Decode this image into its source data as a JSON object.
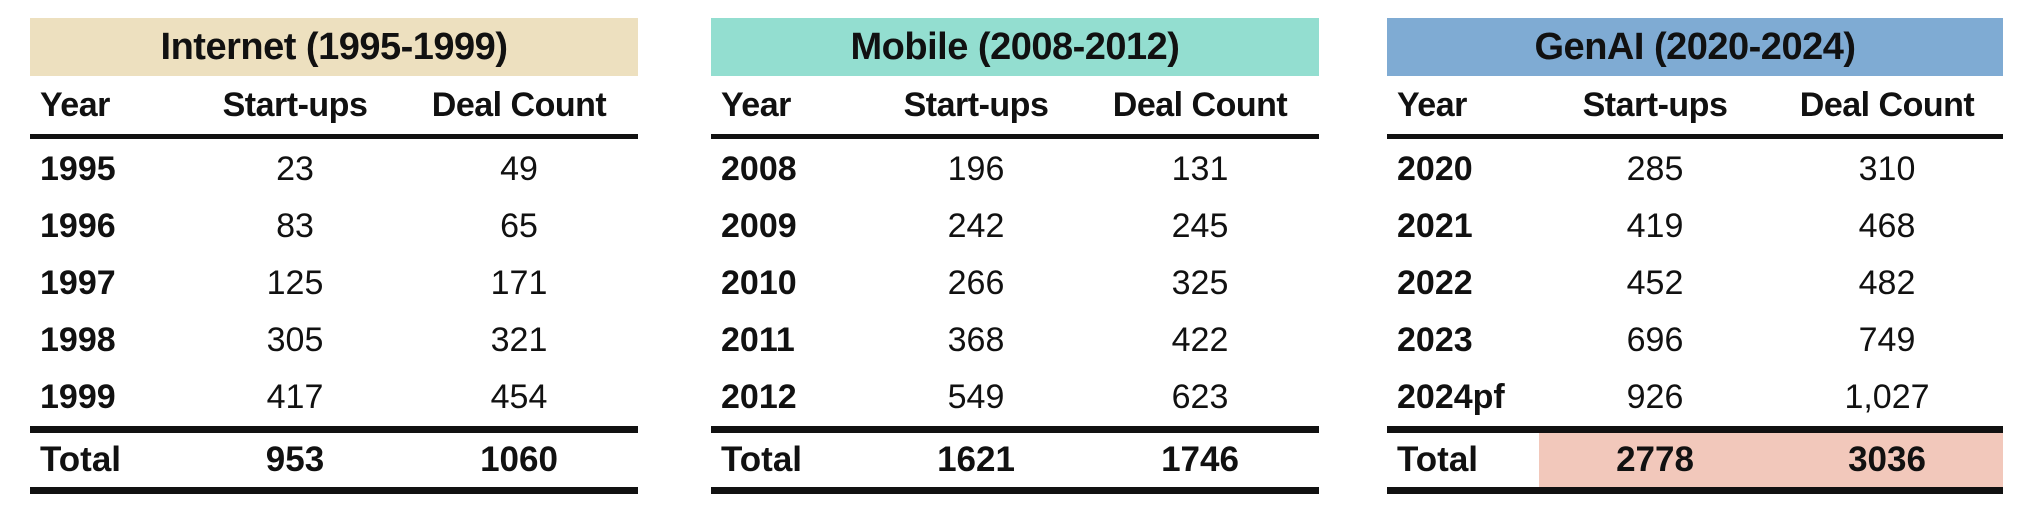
{
  "columns": {
    "year": "Year",
    "startups": "Start-ups",
    "deals": "Deal Count"
  },
  "tables": [
    {
      "title": "Internet (1995-1999)",
      "header_color": "#ede0bf",
      "rows": [
        {
          "year": "1995",
          "startups": "23",
          "deals": "49"
        },
        {
          "year": "1996",
          "startups": "83",
          "deals": "65"
        },
        {
          "year": "1997",
          "startups": "125",
          "deals": "171"
        },
        {
          "year": "1998",
          "startups": "305",
          "deals": "321"
        },
        {
          "year": "1999",
          "startups": "417",
          "deals": "454"
        }
      ],
      "total": {
        "label": "Total",
        "startups": "953",
        "deals": "1060"
      }
    },
    {
      "title": "Mobile (2008-2012)",
      "header_color": "#93ded0",
      "rows": [
        {
          "year": "2008",
          "startups": "196",
          "deals": "131"
        },
        {
          "year": "2009",
          "startups": "242",
          "deals": "245"
        },
        {
          "year": "2010",
          "startups": "266",
          "deals": "325"
        },
        {
          "year": "2011",
          "startups": "368",
          "deals": "422"
        },
        {
          "year": "2012",
          "startups": "549",
          "deals": "623"
        }
      ],
      "total": {
        "label": "Total",
        "startups": "1621",
        "deals": "1746"
      }
    },
    {
      "title": "GenAI (2020-2024)",
      "header_color": "#7fabd3",
      "rows": [
        {
          "year": "2020",
          "startups": "285",
          "deals": "310"
        },
        {
          "year": "2021",
          "startups": "419",
          "deals": "468"
        },
        {
          "year": "2022",
          "startups": "452",
          "deals": "482"
        },
        {
          "year": "2023",
          "startups": "696",
          "deals": "749"
        },
        {
          "year": "2024pf",
          "startups": "926",
          "deals": "1,027"
        }
      ],
      "total": {
        "label": "Total",
        "startups": "2778",
        "deals": "3036"
      },
      "total_highlight_color": "#f2c8bb"
    }
  ]
}
